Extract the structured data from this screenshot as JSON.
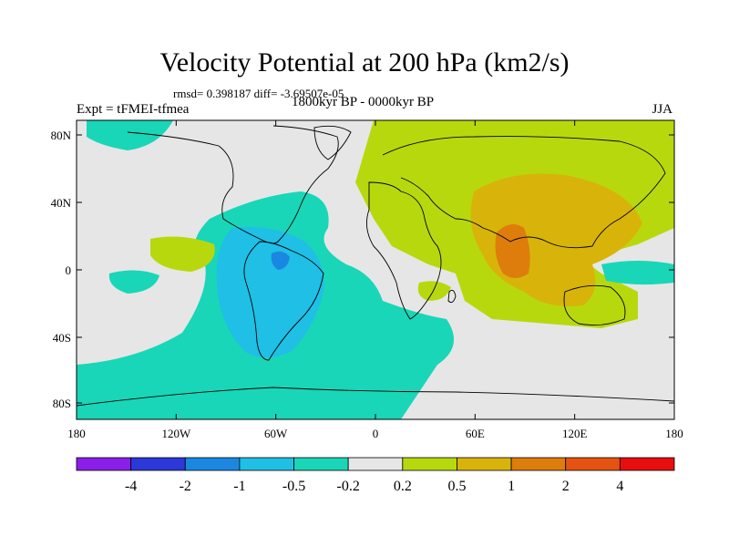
{
  "title": "Velocity Potential at 200 hPa (km2/s)",
  "stats": "rmsd= 0.398187 diff= -3.69507e-05",
  "left_label": "Expt = tFMEI-tfmea",
  "center_label": "1800kyr BP - 0000kyr BP",
  "right_label": "JJA",
  "y_ticks": [
    "80N",
    "40N",
    "0",
    "40S",
    "80S"
  ],
  "x_ticks": [
    "180",
    "120W",
    "60W",
    "0",
    "60E",
    "120E",
    "180"
  ],
  "colorbar": {
    "labels": [
      "-4",
      "-2",
      "-1",
      "-0.5",
      "-0.2",
      "0.2",
      "0.5",
      "1",
      "2",
      "4"
    ],
    "colors": [
      "#8b1ee8",
      "#2c38d8",
      "#1a88e0",
      "#1fbfe6",
      "#19d6b8",
      "#e6e6e6",
      "#b8d80e",
      "#d8b40a",
      "#de7d0c",
      "#e45410",
      "#e80e0e"
    ]
  },
  "field_colors": {
    "neutral": "#e6e6e6",
    "neg_weak": "#19d6b8",
    "neg_mid": "#1fbfe6",
    "neg_strong": "#1a88e0",
    "pos_weak": "#b8d80e",
    "pos_mid": "#d8b40a",
    "pos_strong": "#de7d0c"
  }
}
